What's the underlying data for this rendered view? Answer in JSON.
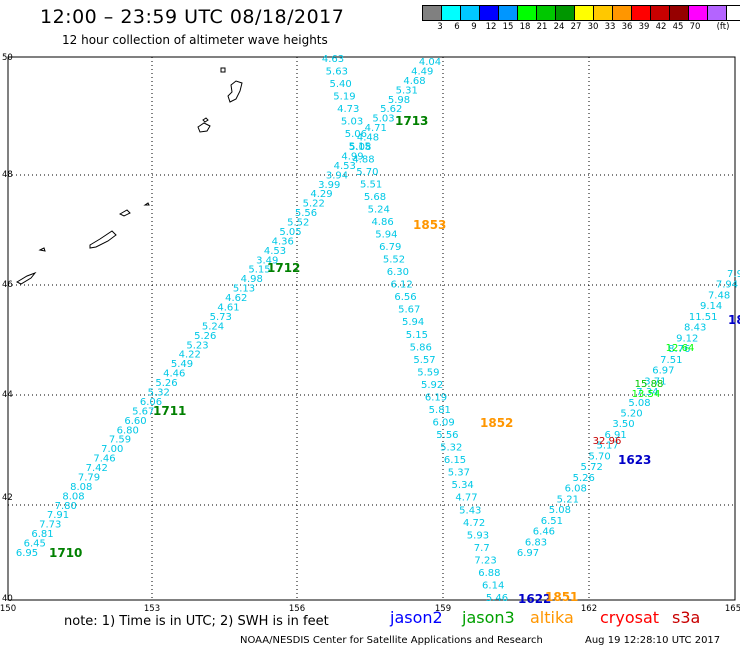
{
  "header": {
    "title": "12:00 – 23:59 UTC 08/18/2017",
    "subtitle": "12 hour collection of altimeter wave heights"
  },
  "scale": {
    "colors": [
      "#808080",
      "#00ffff",
      "#00c8ff",
      "#0000ff",
      "#0096ff",
      "#00ff00",
      "#00c800",
      "#009600",
      "#ffff00",
      "#ffc800",
      "#ff9600",
      "#ff0000",
      "#c80000",
      "#960000",
      "#ff00ff",
      "#b464ff",
      "#ffffff",
      "#000000"
    ],
    "labels": [
      "3",
      "6",
      "9",
      "12",
      "15",
      "18",
      "21",
      "24",
      "27",
      "30",
      "33",
      "36",
      "39",
      "42",
      "45",
      "70"
    ],
    "unit": "(ft)"
  },
  "axes": {
    "lon_ticks": [
      "150",
      "153",
      "156",
      "159",
      "162",
      "165"
    ],
    "lat_ticks": [
      "50",
      "48",
      "46",
      "44",
      "42",
      "40"
    ]
  },
  "passes": {
    "time_labels": [
      {
        "text": "1710",
        "color": "#008000"
      },
      {
        "text": "1711",
        "color": "#008000"
      },
      {
        "text": "1712",
        "color": "#008000"
      },
      {
        "text": "1713",
        "color": "#008000"
      },
      {
        "text": "1853",
        "color": "#ff9600"
      },
      {
        "text": "1852",
        "color": "#ff9600"
      },
      {
        "text": "1623",
        "color": "#0000c8"
      },
      {
        "text": "1622",
        "color": "#0000c8"
      },
      {
        "text": "1851",
        "color": "#ff9600"
      },
      {
        "text": "18",
        "color": "#0000c8"
      }
    ],
    "track_a": [
      "6.95",
      "6.45",
      "6.81",
      "7.73",
      "7.91",
      "7.80",
      "8.08",
      "8.08",
      "7.79",
      "7.42",
      "7.46",
      "7.00",
      "7.59",
      "6.80",
      "6.60",
      "5.67",
      "6.06",
      "5.32",
      "5.26",
      "4.46",
      "5.49",
      "4.22",
      "5.23",
      "5.26",
      "5.24",
      "5.73",
      "4.61",
      "4.62",
      "5.13",
      "4.98",
      "5.15",
      "3.49",
      "4.53",
      "4.36",
      "5.05",
      "5.52",
      "5.56",
      "5.22",
      "4.29",
      "3.99",
      "3.94",
      "4.53",
      "4.99",
      "5.08",
      "4.48",
      "4.71",
      "5.03",
      "5.62",
      "5.98",
      "5.31",
      "4.68",
      "4.49",
      "4.04"
    ],
    "track_b": [
      "4.63",
      "5.63",
      "5.40",
      "5.19",
      "4.73",
      "5.03",
      "5.06",
      "5.15",
      "4.88",
      "5.70",
      "5.51",
      "5.68",
      "5.24",
      "4.86",
      "5.94",
      "6.79",
      "5.52",
      "6.30",
      "6.12",
      "6.56",
      "5.67",
      "5.94",
      "5.15",
      "5.86",
      "5.57",
      "5.59",
      "5.92",
      "6.19",
      "5.81",
      "6.09",
      "5.56",
      "5.32",
      "6.15",
      "5.37",
      "5.34",
      "4.77",
      "5.43",
      "4.72",
      "5.93",
      "7.7",
      "7.23",
      "6.88",
      "6.14",
      "5.46"
    ],
    "track_c": [
      "6.97",
      "6.83",
      "6.46",
      "6.51",
      "5.08",
      "5.21",
      "6.08",
      "5.26",
      "5.72",
      "5.70",
      "5.17",
      "6.91",
      "3.50",
      "5.20",
      "5.08",
      "7.34",
      "3.71",
      "6.97",
      "7.51",
      "8.76",
      "9.12",
      "8.43",
      "11.51",
      "9.14",
      "7.48",
      "7.94",
      "7.9"
    ],
    "highlight_values": [
      {
        "text": "32.96",
        "color": "#c80000"
      },
      {
        "text": "15.88",
        "color": "#00c800"
      },
      {
        "text": "13.54",
        "color": "#00ff00"
      },
      {
        "text": "12.64",
        "color": "#00ff00"
      }
    ]
  },
  "footer": {
    "note": "note:  1) Time is in UTC; 2) SWH is in feet",
    "legend": [
      {
        "text": "jason2",
        "color": "#0000ff"
      },
      {
        "text": "jason3",
        "color": "#00a000"
      },
      {
        "text": "altika",
        "color": "#ff9600"
      },
      {
        "text": "cryosat",
        "color": "#ff0000"
      },
      {
        "text": "s3a",
        "color": "#c80000"
      }
    ],
    "credit": "NOAA/NESDIS Center for Satellite Applications and Research",
    "timestamp": "Aug 19 12:28:10 UTC 2017"
  }
}
